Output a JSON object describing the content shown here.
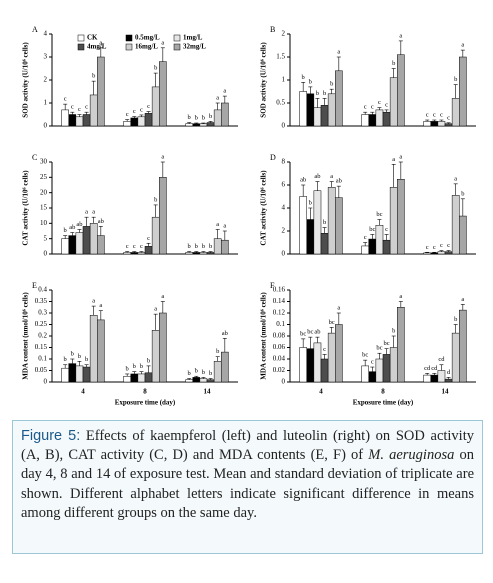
{
  "chart_data": [
    {
      "type": "bar",
      "panel_label": "A",
      "ylabel": "SOD activity (U/10⁶ cells)",
      "categories": [
        null,
        null,
        null
      ],
      "ylim": [
        0,
        4
      ],
      "yticks": [
        0,
        1,
        2,
        3,
        4
      ],
      "series": [
        {
          "name": "CK",
          "color": "#ffffff",
          "values": [
            0.7,
            0.2,
            0.1
          ],
          "errors": [
            0.25,
            0.08,
            0.05
          ],
          "letters": [
            "c",
            "c",
            "b"
          ]
        },
        {
          "name": "0.5mg/L",
          "color": "#000000",
          "values": [
            0.5,
            0.35,
            0.1
          ],
          "errors": [
            0.1,
            0.06,
            0.03
          ],
          "letters": [
            "c",
            "c",
            "b"
          ]
        },
        {
          "name": "1mg/L",
          "color": "#e6e6e6",
          "values": [
            0.4,
            0.4,
            0.1
          ],
          "errors": [
            0.1,
            0.08,
            0.03
          ],
          "letters": [
            "c",
            "c",
            "b"
          ]
        },
        {
          "name": "4mg/L",
          "color": "#4d4d4d",
          "values": [
            0.5,
            0.55,
            0.15
          ],
          "errors": [
            0.1,
            0.08,
            0.05
          ],
          "letters": [
            "c",
            "c",
            "b"
          ]
        },
        {
          "name": "16mg/L",
          "color": "#cfcfcf",
          "values": [
            1.35,
            1.7,
            0.7
          ],
          "errors": [
            0.6,
            0.6,
            0.3
          ],
          "letters": [
            "b",
            "b",
            "a"
          ]
        },
        {
          "name": "32mg/L",
          "color": "#a6a6a6",
          "values": [
            3.0,
            2.8,
            1.0
          ],
          "errors": [
            0.4,
            0.6,
            0.3
          ],
          "letters": [
            "a",
            "a",
            "a"
          ]
        }
      ]
    },
    {
      "type": "bar",
      "panel_label": "B",
      "ylabel": "SOD activity (U/10⁶ cells)",
      "categories": [
        null,
        null,
        null
      ],
      "ylim": [
        0,
        2
      ],
      "yticks": [
        0,
        0.5,
        1,
        1.5,
        2
      ],
      "series": [
        {
          "values": [
            0.75,
            0.25,
            0.1
          ],
          "errors": [
            0.2,
            0.05,
            0.03
          ],
          "letters": [
            "b",
            "c",
            "c"
          ]
        },
        {
          "values": [
            0.7,
            0.25,
            0.1
          ],
          "errors": [
            0.15,
            0.05,
            0.03
          ],
          "letters": [
            "b",
            "c",
            "c"
          ]
        },
        {
          "values": [
            0.4,
            0.35,
            0.1
          ],
          "errors": [
            0.2,
            0.05,
            0.03
          ],
          "letters": [
            "b",
            "c",
            "c"
          ]
        },
        {
          "values": [
            0.45,
            0.3,
            0.05
          ],
          "errors": [
            0.15,
            0.05,
            0.02
          ],
          "letters": [
            "b",
            "c",
            "c"
          ]
        },
        {
          "values": [
            0.7,
            1.05,
            0.6
          ],
          "errors": [
            0.1,
            0.2,
            0.3
          ],
          "letters": [
            "b",
            "b",
            "b"
          ]
        },
        {
          "values": [
            1.2,
            1.55,
            1.5
          ],
          "errors": [
            0.3,
            0.3,
            0.15
          ],
          "letters": [
            "a",
            "a",
            "a"
          ]
        }
      ]
    },
    {
      "type": "bar",
      "panel_label": "C",
      "ylabel": "CAT activity (U/10⁶ cells)",
      "categories": [
        null,
        null,
        null
      ],
      "ylim": [
        0,
        30
      ],
      "yticks": [
        0,
        5,
        10,
        15,
        20,
        25,
        30
      ],
      "series": [
        {
          "values": [
            5,
            0.5,
            0.5
          ],
          "errors": [
            1,
            0.3,
            0.3
          ],
          "letters": [
            "b",
            "c",
            "b"
          ]
        },
        {
          "values": [
            6,
            0.5,
            0.5
          ],
          "errors": [
            1,
            0.3,
            0.3
          ],
          "letters": [
            "ab",
            "c",
            "b"
          ]
        },
        {
          "values": [
            7,
            0.5,
            0.5
          ],
          "errors": [
            1,
            0.3,
            0.3
          ],
          "letters": [
            "ab",
            "c",
            "b"
          ]
        },
        {
          "values": [
            9,
            2.5,
            0.5
          ],
          "errors": [
            3,
            1,
            0.3
          ],
          "letters": [
            "a",
            "c",
            "b"
          ]
        },
        {
          "values": [
            10,
            12,
            5
          ],
          "errors": [
            2,
            4,
            3
          ],
          "letters": [
            "a",
            "b",
            "a"
          ]
        },
        {
          "values": [
            6,
            25,
            4.5
          ],
          "errors": [
            3,
            5,
            3
          ],
          "letters": [
            "ab",
            "a",
            "a"
          ]
        }
      ]
    },
    {
      "type": "bar",
      "panel_label": "D",
      "ylabel": "CAT activity (U/10⁶ cells)",
      "categories": [
        null,
        null,
        null
      ],
      "ylim": [
        0,
        8
      ],
      "yticks": [
        0,
        2,
        4,
        6,
        8
      ],
      "series": [
        {
          "values": [
            5,
            0.7,
            0.1
          ],
          "errors": [
            1,
            0.3,
            0.05
          ],
          "letters": [
            "ab",
            "c",
            "c"
          ]
        },
        {
          "values": [
            3,
            1.3,
            0.1
          ],
          "errors": [
            1,
            0.4,
            0.05
          ],
          "letters": [
            "b",
            "bc",
            "c"
          ]
        },
        {
          "values": [
            5.5,
            2.5,
            0.2
          ],
          "errors": [
            0.8,
            0.5,
            0.1
          ],
          "letters": [
            "ab",
            "bc",
            "c"
          ]
        },
        {
          "values": [
            1.8,
            1.2,
            0.2
          ],
          "errors": [
            0.5,
            0.5,
            0.1
          ],
          "letters": [
            "b",
            "c",
            "c"
          ]
        },
        {
          "values": [
            5.8,
            5.8,
            5.1
          ],
          "errors": [
            0.5,
            2,
            1
          ],
          "letters": [
            "a",
            "a",
            "a"
          ]
        },
        {
          "values": [
            4.9,
            6.5,
            3.3
          ],
          "errors": [
            1,
            1.5,
            1.5
          ],
          "letters": [
            "ab",
            "a",
            "b"
          ]
        }
      ]
    },
    {
      "type": "bar",
      "panel_label": "E",
      "ylabel": "MDA content (nmol/10⁶ cells)",
      "xlabel": "Exposure time (day)",
      "categories": [
        "4",
        "8",
        "14"
      ],
      "ylim": [
        0,
        0.4
      ],
      "yticks": [
        0,
        0.05,
        0.1,
        0.15,
        0.2,
        0.25,
        0.3,
        0.35,
        0.4
      ],
      "series": [
        {
          "values": [
            0.06,
            0.025,
            0.01
          ],
          "errors": [
            0.015,
            0.01,
            0.005
          ],
          "letters": [
            "b",
            "b",
            "b"
          ]
        },
        {
          "values": [
            0.08,
            0.035,
            0.02
          ],
          "errors": [
            0.02,
            0.01,
            0.005
          ],
          "letters": [
            "b",
            "b",
            "b"
          ]
        },
        {
          "values": [
            0.07,
            0.035,
            0.015
          ],
          "errors": [
            0.02,
            0.01,
            0.005
          ],
          "letters": [
            "b",
            "b",
            "b"
          ]
        },
        {
          "values": [
            0.065,
            0.04,
            0.01
          ],
          "errors": [
            0.01,
            0.03,
            0.005
          ],
          "letters": [
            "b",
            "b",
            "b"
          ]
        },
        {
          "values": [
            0.29,
            0.225,
            0.09
          ],
          "errors": [
            0.04,
            0.07,
            0.02
          ],
          "letters": [
            "a",
            "a",
            "b"
          ]
        },
        {
          "values": [
            0.27,
            0.3,
            0.13
          ],
          "errors": [
            0.04,
            0.05,
            0.06
          ],
          "letters": [
            "a",
            "a",
            "ab"
          ]
        }
      ]
    },
    {
      "type": "bar",
      "panel_label": "F",
      "ylabel": "MDA content (nmol/10⁶ cells)",
      "xlabel": "Exposure time (day)",
      "categories": [
        "4",
        "8",
        "14"
      ],
      "ylim": [
        0,
        0.16
      ],
      "yticks": [
        0,
        0.02,
        0.04,
        0.06,
        0.08,
        0.1,
        0.12,
        0.14,
        0.16
      ],
      "series": [
        {
          "values": [
            0.06,
            0.028,
            0.012
          ],
          "errors": [
            0.015,
            0.01,
            0.003
          ],
          "letters": [
            "bc",
            "bc",
            "cd"
          ]
        },
        {
          "values": [
            0.058,
            0.018,
            0.012
          ],
          "errors": [
            0.02,
            0.008,
            0.003
          ],
          "letters": [
            "bc",
            "c",
            "cd"
          ]
        },
        {
          "values": [
            0.068,
            0.04,
            0.02
          ],
          "errors": [
            0.01,
            0.01,
            0.01
          ],
          "letters": [
            "ab",
            "bc",
            "cd"
          ]
        },
        {
          "values": [
            0.04,
            0.048,
            0.005
          ],
          "errors": [
            0.008,
            0.01,
            0.003
          ],
          "letters": [
            "c",
            "bc",
            "d"
          ]
        },
        {
          "values": [
            0.085,
            0.06,
            0.085
          ],
          "errors": [
            0.01,
            0.02,
            0.015
          ],
          "letters": [
            "bc",
            "b",
            "b"
          ]
        },
        {
          "values": [
            0.1,
            0.13,
            0.125
          ],
          "errors": [
            0.02,
            0.01,
            0.01
          ],
          "letters": [
            "a",
            "a",
            "a"
          ]
        }
      ]
    }
  ],
  "caption": {
    "label": "Figure 5:",
    "text_before": " Effects of kaempferol (left) and luteolin (right) on SOD activity (A, B), CAT activity (C, D) and MDA contents (E, F) of ",
    "italic": "M. aeruginosa",
    "text_after": " on day 4, 8 and 14 of exposure test. Mean and standard deviation of triplicate are shown. Different alphabet letters indicate significant difference in means among different groups on the same day."
  }
}
